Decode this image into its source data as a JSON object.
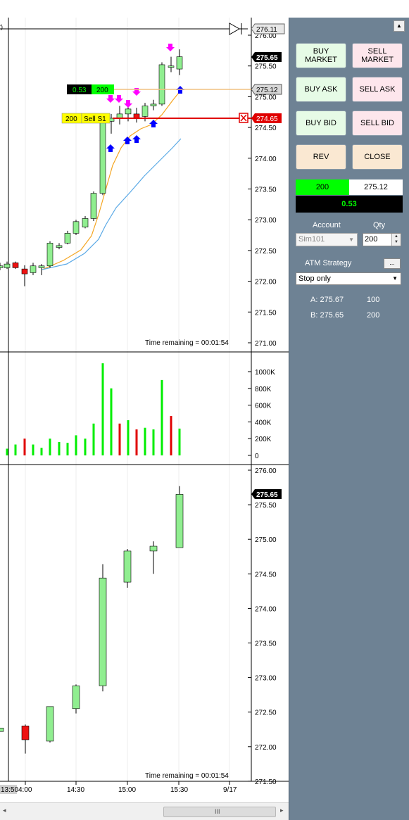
{
  "price_panel": {
    "price_labels": [
      "276.00",
      "275.50",
      "275.00",
      "274.50",
      "274.00",
      "273.50",
      "273.00",
      "272.50",
      "272.00",
      "271.50",
      "271.00"
    ],
    "top_price": "276.11",
    "last_price": "275.65",
    "position_price": "275.12",
    "stop_price": "274.65",
    "time_remaining": "Time remaining = 00:01:54",
    "pnl_tag": "0.53",
    "qty_tag": "200",
    "order_qty": "200",
    "order_label": "Sell S1",
    "edge_label": "r)"
  },
  "volume_panel": {
    "labels": [
      "1000K",
      "800K",
      "600K",
      "400K",
      "200K",
      "0"
    ]
  },
  "lower_panel": {
    "price_labels": [
      "276.00",
      "275.50",
      "275.00",
      "274.50",
      "274.00",
      "273.50",
      "273.00",
      "272.50",
      "272.00",
      "271.50"
    ],
    "last_price": "275.65",
    "time_remaining": "Time remaining = 00:01:54"
  },
  "x_axis": {
    "first_label": "13:50",
    "labels": [
      "4:00",
      "14:30",
      "15:00",
      "15:30",
      "9/17"
    ]
  },
  "scrollbar": {
    "thumb_glyph": "III",
    "left_arrow": "◂",
    "right_arrow": "▸"
  },
  "chart_trader": {
    "scroll_up": "▲",
    "buttons": {
      "buy_market": "BUY\nMARKET",
      "sell_market": "SELL\nMARKET",
      "buy_ask": "BUY ASK",
      "sell_ask": "SELL ASK",
      "buy_bid": "BUY BID",
      "sell_bid": "SELL BID",
      "rev": "REV",
      "close": "CLOSE"
    },
    "position": {
      "qty": "200",
      "avg_price": "275.12",
      "pnl": "0.53"
    },
    "account_label": "Account",
    "qty_label": "Qty",
    "account_value": "Sim101",
    "qty_value": "200",
    "atm_label": "ATM Strategy",
    "atm_button": "...",
    "atm_value": "Stop only",
    "ask_line": {
      "label": "A: 275.67",
      "size": "100"
    },
    "bid_line": {
      "label": "B: 275.65",
      "size": "200"
    }
  },
  "colors": {
    "up_candle": "#90ee90",
    "down_candle": "#ee1111",
    "ema_fast": "#f5a623",
    "ema_slow": "#5aa9e6",
    "volume_up": "#00ee00",
    "volume_down": "#e00000",
    "panel_bg": "#6e8294",
    "stop_line": "#e00000",
    "position_line": "#f0c080"
  }
}
